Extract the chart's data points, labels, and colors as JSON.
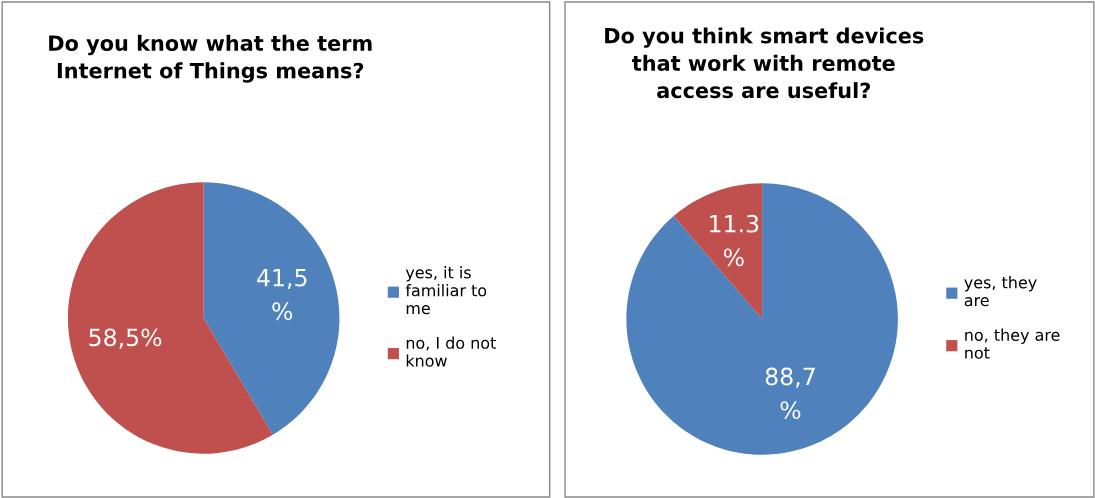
{
  "chart_data": [
    {
      "type": "pie",
      "title": "Do you know what the term\nInternet of Things means?",
      "categories": [
        "yes, it is\nfamiliar to\nme",
        "no, I do not\nknow"
      ],
      "values": [
        41.5,
        58.5
      ],
      "colors": [
        "#4f81bd",
        "#c0504d"
      ],
      "value_labels": [
        "41,5\n%",
        "58,5%"
      ],
      "legend": "right"
    },
    {
      "type": "pie",
      "title": "Do you think smart devices\nthat work with remote\naccess are useful?",
      "categories": [
        "yes, they\nare",
        "no, they are\nnot"
      ],
      "values": [
        88.7,
        11.3
      ],
      "colors": [
        "#4f81bd",
        "#c0504d"
      ],
      "value_labels": [
        "88,7\n%",
        "11.3\n%"
      ],
      "legend": "right"
    }
  ]
}
